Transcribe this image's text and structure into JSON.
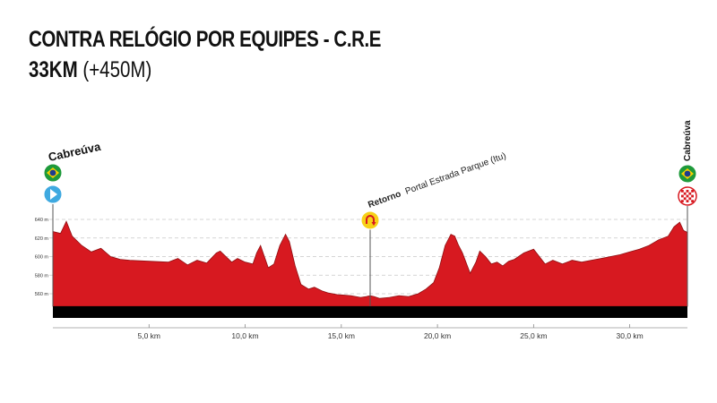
{
  "header": {
    "title": "CONTRA RELÓGIO POR EQUIPES - C.R.E",
    "distance": "33KM",
    "elevation_gain": "(+450M)"
  },
  "colors": {
    "profile_fill": "#d71920",
    "profile_stroke": "#8e0f12",
    "base_bar": "#000000",
    "grid": "#c8c8c8",
    "start_icon": "#3fa9e0",
    "turn_icon": "#f7d117",
    "turn_arrow": "#d71920",
    "finish_icon": "#d71920",
    "flag_green": "#1e9a3a",
    "flag_yellow": "#f5d000",
    "flag_blue": "#1d3c8f"
  },
  "labels": {
    "start_town": "Cabreúva",
    "finish_town": "Cabreúva",
    "turn_bold": "Retorno",
    "turn_text": "Portal Estrada Parque (Itu)"
  },
  "icons": {
    "start_flag": "brazil-flag-icon",
    "start_marker": "play-icon",
    "turn_marker": "u-turn-icon",
    "finish_flag": "brazil-flag-icon",
    "finish_marker": "checkered-flag-icon"
  },
  "chart_data": {
    "type": "area",
    "xlabel": "",
    "ylabel": "",
    "xlim": [
      0,
      33
    ],
    "ylim": [
      550,
      645
    ],
    "x_ticks": [
      5,
      10,
      15,
      20,
      25,
      30
    ],
    "x_tick_labels": [
      "5,0 km",
      "10,0 km",
      "15,0 km",
      "20,0 km",
      "25,0 km",
      "30,0 km"
    ],
    "y_ticks": [
      560,
      580,
      600,
      620,
      640
    ],
    "y_tick_labels": [
      "560 m",
      "580 m",
      "600 m",
      "620 m",
      "640 m"
    ],
    "grid": true,
    "turnaround_km": 16.5,
    "series": [
      {
        "x": [
          0,
          0.4,
          0.7,
          1.0,
          1.5,
          2.0,
          2.5,
          3.0,
          3.5,
          4.0,
          5.0,
          6.0,
          6.5,
          7.0,
          7.5,
          8.0,
          8.5,
          8.7,
          9.0,
          9.3,
          9.6,
          10.0,
          10.4,
          10.6,
          10.8,
          11.0,
          11.2,
          11.5,
          11.8,
          12.1,
          12.3,
          12.6,
          12.9,
          13.3,
          13.6,
          14.0,
          14.3,
          14.8,
          15.5,
          16.0,
          16.3,
          16.5,
          16.7,
          17.0,
          17.5,
          18.0,
          18.5,
          19.0,
          19.4,
          19.8,
          20.1,
          20.4,
          20.7,
          20.9,
          21.1,
          21.3,
          21.7,
          22.0,
          22.2,
          22.5,
          22.8,
          23.1,
          23.4,
          23.7,
          24.0,
          24.5,
          25.0,
          25.3,
          25.6,
          26.0,
          26.5,
          27.0,
          27.5,
          28.0,
          28.5,
          29.0,
          29.5,
          30.0,
          30.5,
          31.0,
          31.5,
          32.0,
          32.3,
          32.6,
          32.8,
          33.0
        ],
        "y": [
          627,
          625,
          638,
          622,
          612,
          605,
          609,
          600,
          597,
          596,
          595,
          594,
          598,
          591,
          596,
          593,
          604,
          606,
          600,
          594,
          598,
          594,
          592,
          604,
          612,
          600,
          588,
          592,
          612,
          624,
          616,
          590,
          570,
          565,
          567,
          563,
          561,
          559,
          558,
          556,
          557,
          558,
          557,
          555,
          556,
          558,
          557,
          560,
          565,
          572,
          588,
          612,
          624,
          622,
          612,
          604,
          582,
          594,
          606,
          600,
          592,
          594,
          590,
          595,
          597,
          604,
          608,
          600,
          592,
          596,
          592,
          596,
          594,
          596,
          598,
          600,
          602,
          605,
          608,
          612,
          618,
          622,
          632,
          637,
          628,
          626
        ]
      }
    ]
  }
}
